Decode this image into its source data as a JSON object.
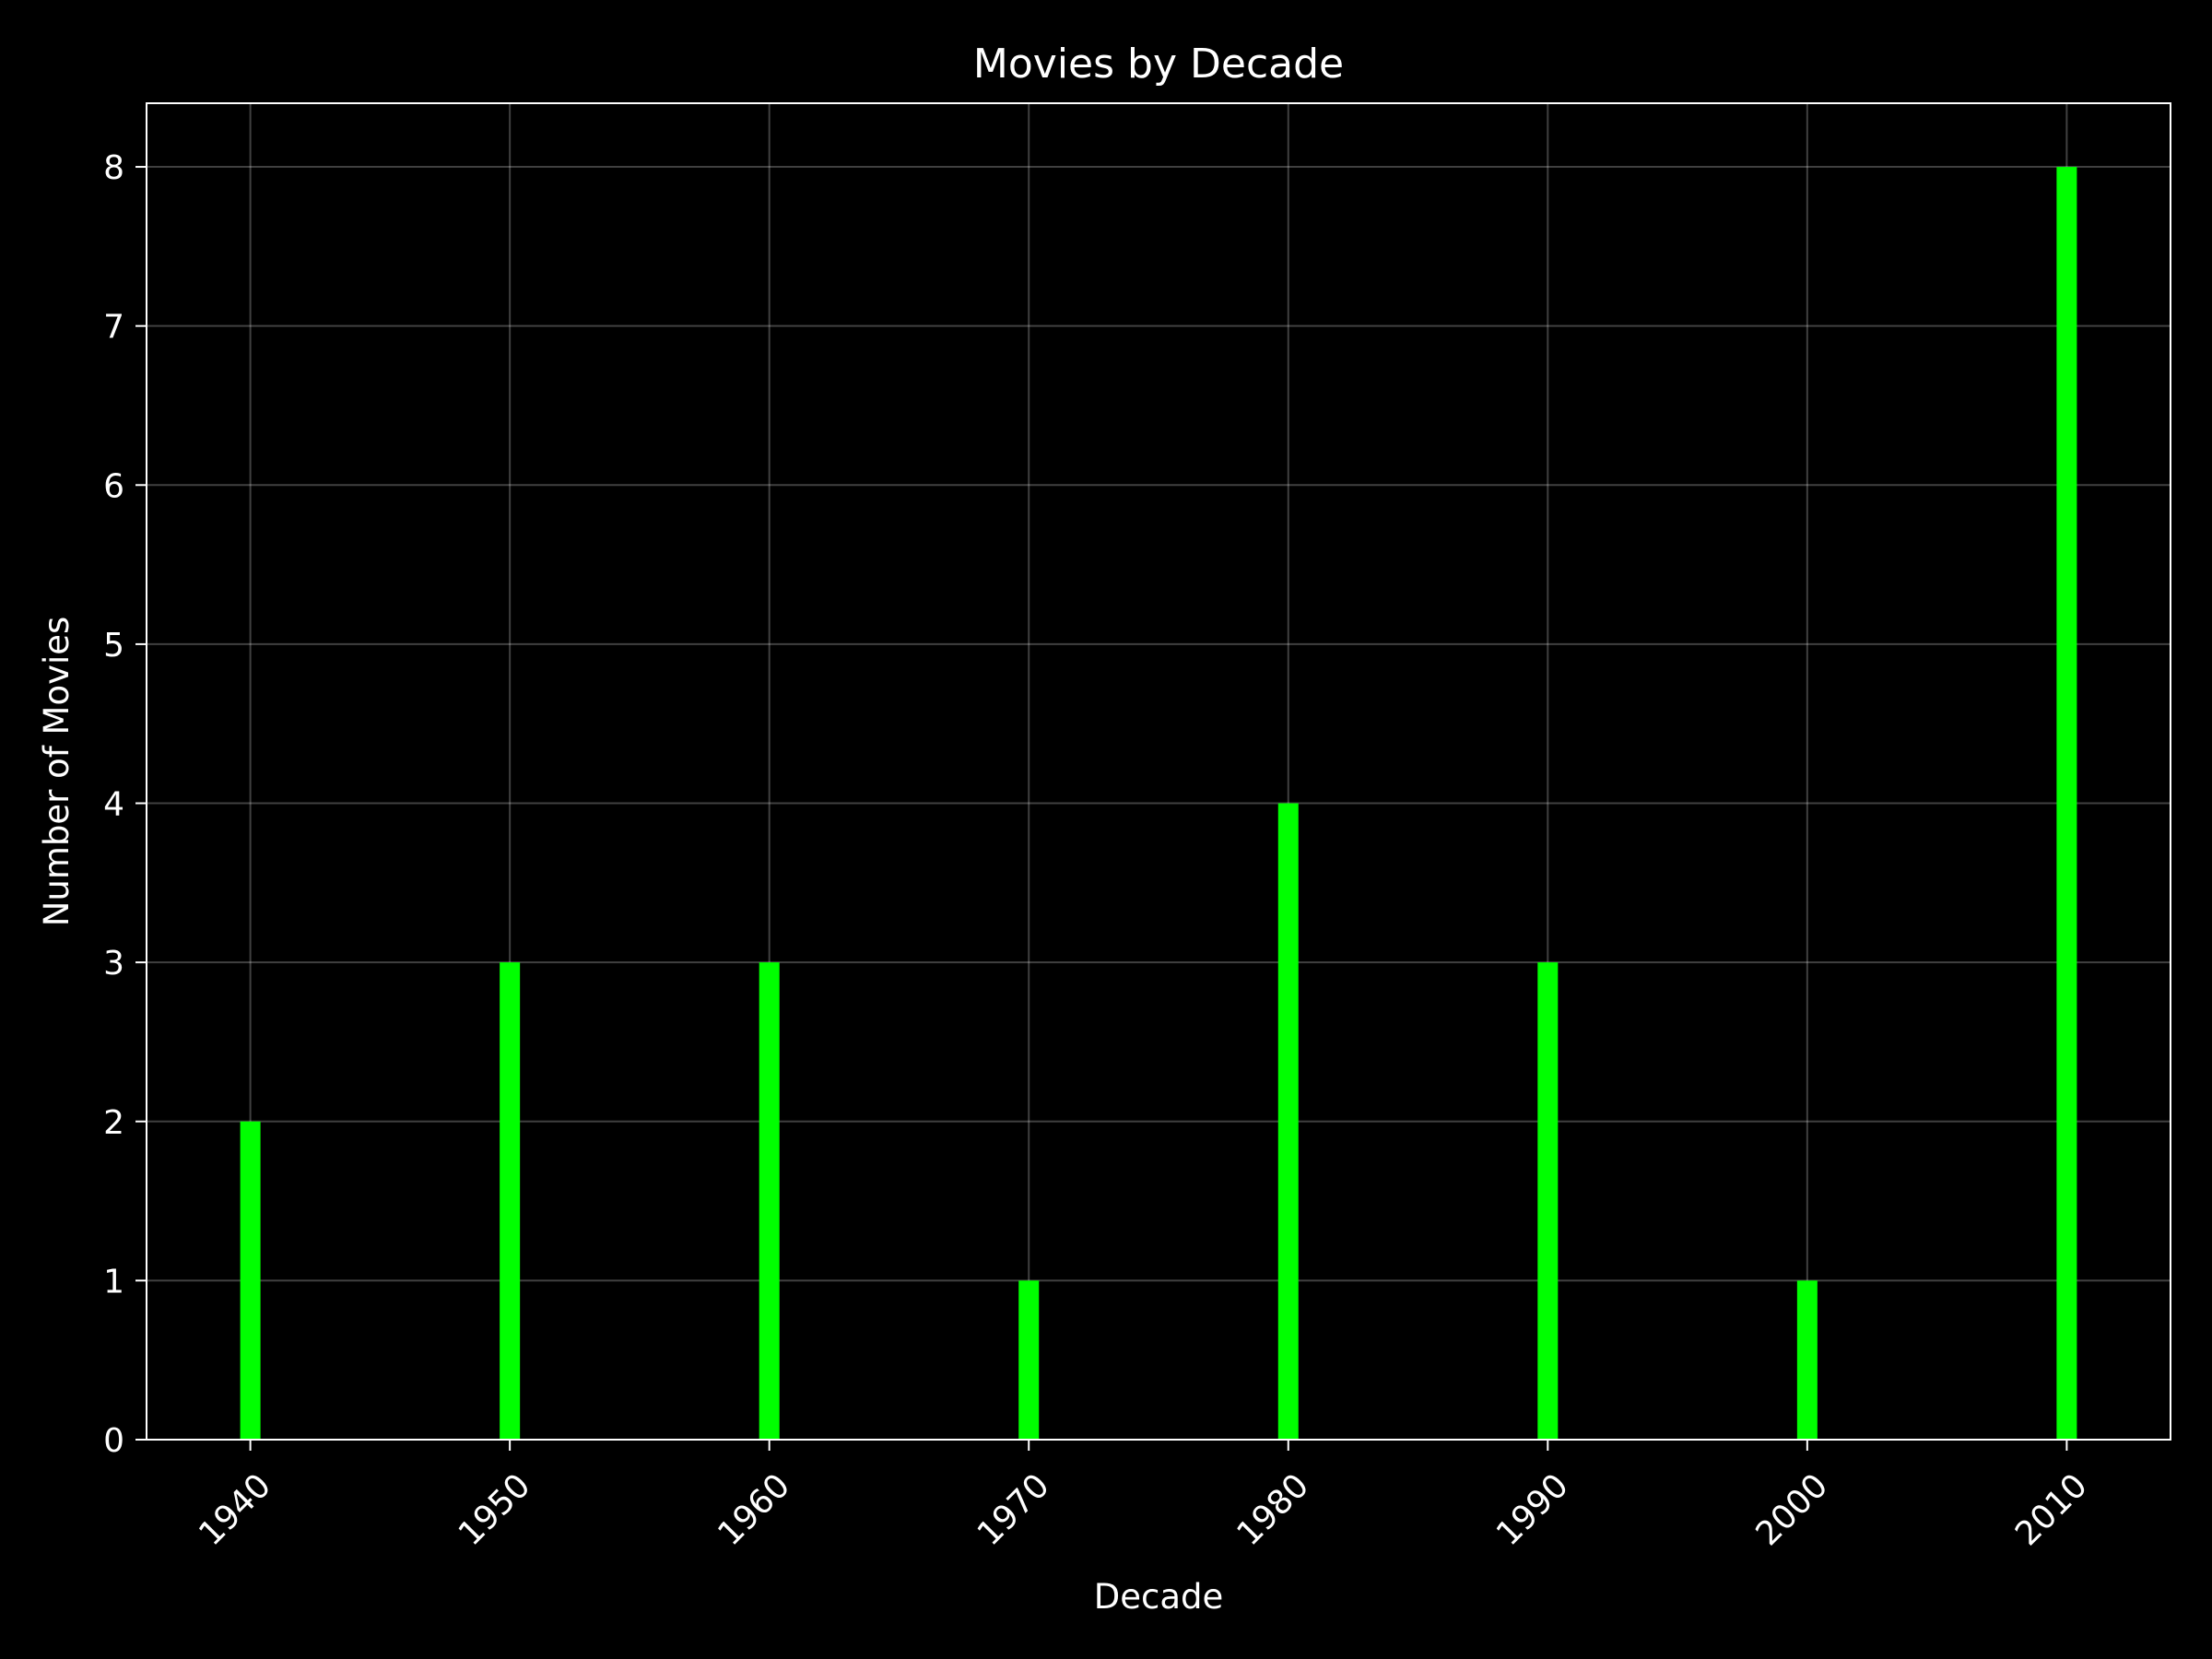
{
  "chart_data": {
    "type": "bar",
    "title": "Movies by Decade",
    "xlabel": "Decade",
    "ylabel": "Number of Movies",
    "categories": [
      "1940",
      "1950",
      "1960",
      "1970",
      "1980",
      "1990",
      "2000",
      "2010"
    ],
    "x": [
      1940,
      1950,
      1960,
      1970,
      1980,
      1990,
      2000,
      2010
    ],
    "values": [
      2,
      3,
      3,
      1,
      4,
      3,
      1,
      8
    ],
    "xlim": [
      1936,
      2014
    ],
    "ylim": [
      0,
      8.4
    ],
    "yticks": [
      0,
      1,
      2,
      3,
      4,
      5,
      6,
      7,
      8
    ],
    "grid": true,
    "bar_color": "#00ff00",
    "background": "#000000",
    "foreground": "#ffffff"
  }
}
